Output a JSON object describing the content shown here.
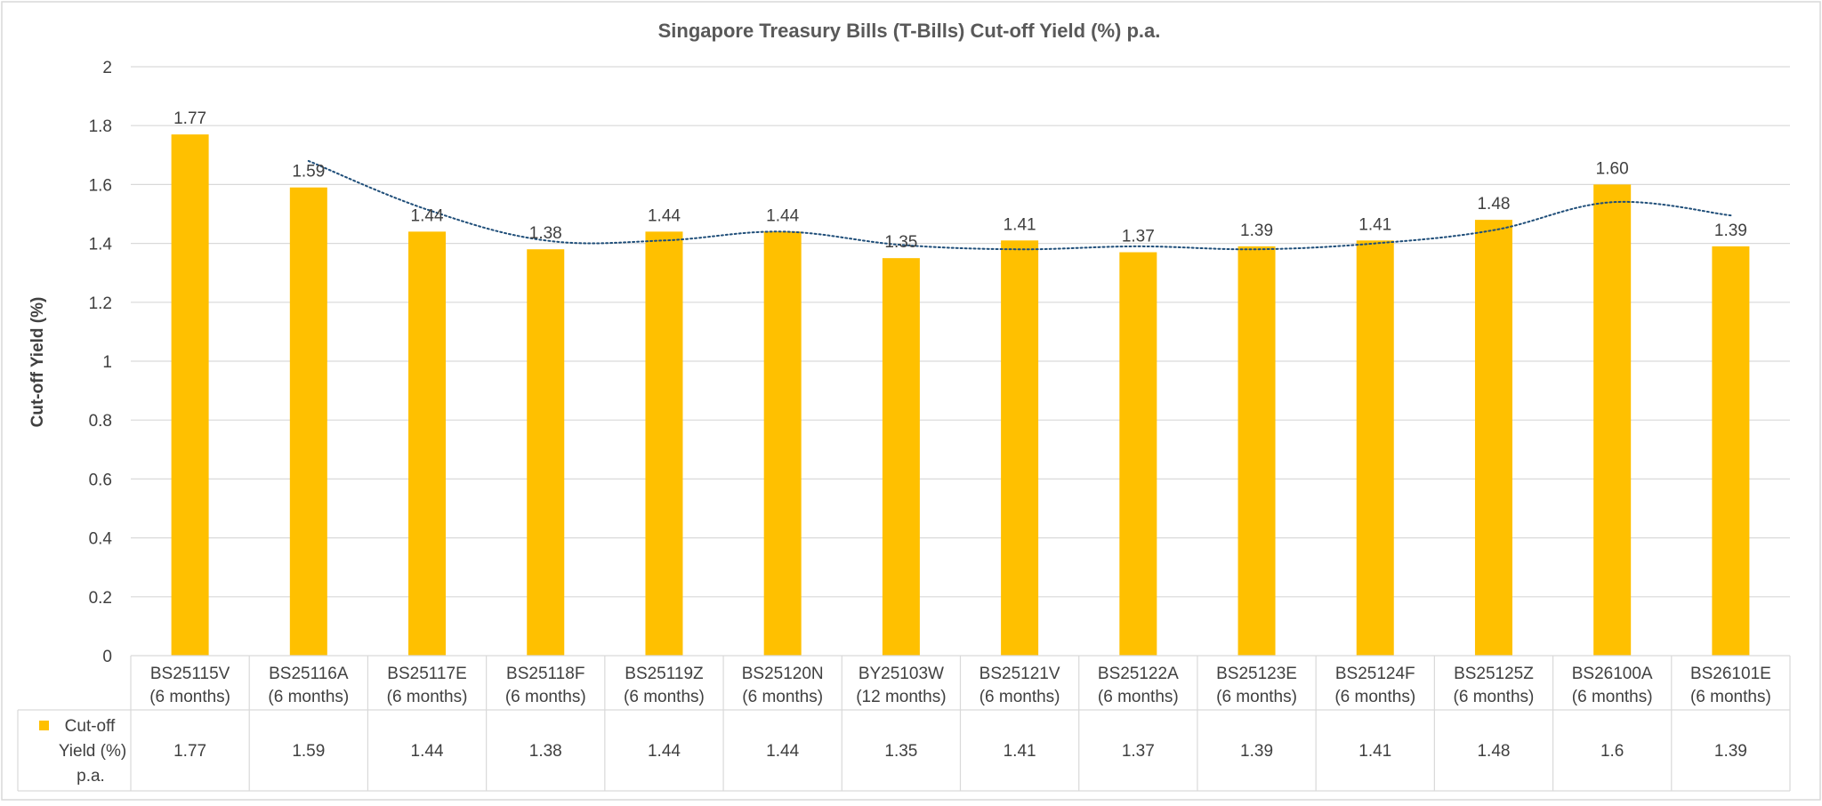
{
  "chart_data": {
    "type": "bar",
    "title": "Singapore Treasury Bills (T-Bills) Cut-off Yield (%) p.a.",
    "xlabel": "",
    "ylabel": "Cut-off Yield (%)",
    "ylim": [
      0,
      2
    ],
    "yticks": [
      "0",
      "0.2",
      "0.4",
      "0.6",
      "0.8",
      "1",
      "1.2",
      "1.4",
      "1.6",
      "1.8",
      "2"
    ],
    "grid": true,
    "categories": [
      [
        "BS25115V",
        "(6 months)"
      ],
      [
        "BS25116A",
        "(6 months)"
      ],
      [
        "BS25117E",
        "(6 months)"
      ],
      [
        "BS25118F",
        "(6 months)"
      ],
      [
        "BS25119Z",
        "(6 months)"
      ],
      [
        "BS25120N",
        "(6 months)"
      ],
      [
        "BY25103W",
        "(12 months)"
      ],
      [
        "BS25121V",
        "(6 months)"
      ],
      [
        "BS25122A",
        "(6 months)"
      ],
      [
        "BS25123E",
        "(6 months)"
      ],
      [
        "BS25124F",
        "(6 months)"
      ],
      [
        "BS25125Z",
        "(6 months)"
      ],
      [
        "BS26100A",
        "(6 months)"
      ],
      [
        "BS26101E",
        "(6 months)"
      ]
    ],
    "series": [
      {
        "name": "Cut-off Yield (%) p.a.",
        "values": [
          1.77,
          1.59,
          1.44,
          1.38,
          1.44,
          1.44,
          1.35,
          1.41,
          1.37,
          1.39,
          1.41,
          1.48,
          1.6,
          1.39
        ],
        "data_labels": [
          "1.77",
          "1.59",
          "1.44",
          "1.38",
          "1.44",
          "1.44",
          "1.35",
          "1.41",
          "1.37",
          "1.39",
          "1.41",
          "1.48",
          "1.60",
          "1.39"
        ],
        "table_values": [
          "1.77",
          "1.59",
          "1.44",
          "1.38",
          "1.44",
          "1.44",
          "1.35",
          "1.41",
          "1.37",
          "1.39",
          "1.41",
          "1.48",
          "1.6",
          "1.39"
        ],
        "color": "#FFC000"
      }
    ],
    "trendline": {
      "type": "moving-average",
      "period": 2,
      "color": "#1F4E79",
      "style": "dotted"
    },
    "legend": {
      "placement": "data-table",
      "label_lines": [
        "Cut-off",
        "Yield (%)",
        "p.a."
      ]
    }
  }
}
